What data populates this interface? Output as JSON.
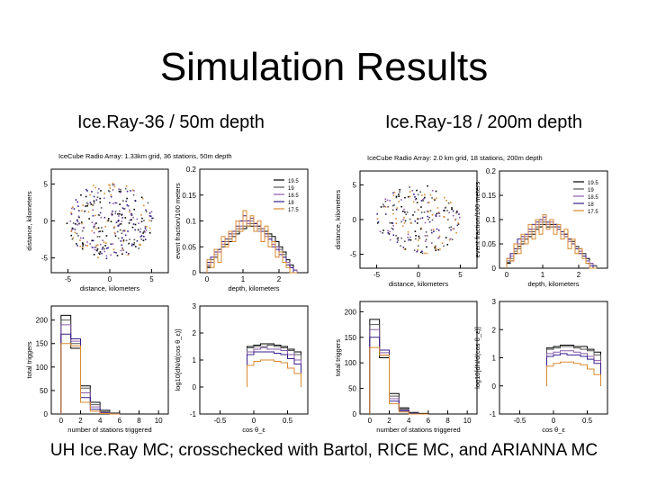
{
  "slide": {
    "title": "Simulation Results",
    "left_heading": "Ice.Ray-36 / 50m depth",
    "right_heading": "Ice.Ray-18 / 200m depth",
    "footer": "UH Ice.Ray MC; crosschecked with Bartol, RICE MC, and ARIANNA MC"
  },
  "chart_data": [
    {
      "panel": "left-top-left",
      "type": "scatter",
      "title": "IceCube Radio Array: 1.33km grid, 36 stations, 50m depth",
      "xlabel": "distance, kilometers",
      "ylabel": "distance, kilometers",
      "xlim": [
        -7,
        7
      ],
      "ylim": [
        -7,
        7
      ],
      "xticks": [
        -5,
        0,
        5
      ],
      "yticks": [
        -5,
        0,
        5
      ],
      "description_points": {
        "radius_km": 5.2,
        "count": 320,
        "seed": 7
      }
    },
    {
      "panel": "left-top-right",
      "type": "line",
      "xlabel": "depth, kilometers",
      "ylabel": "event fraction/100 meters",
      "xlim": [
        -0.2,
        2.8
      ],
      "ylim": [
        0,
        0.2
      ],
      "xticks": [
        0,
        1,
        2
      ],
      "yticks": [
        0,
        0.05,
        0.1,
        0.15,
        0.2
      ],
      "ytick_labels": [
        "0",
        "0.05",
        "0.1",
        "0.15",
        "0.2"
      ],
      "legend": [
        "19.5",
        "19",
        "18.5",
        "18",
        "17.5"
      ],
      "legend_colors": [
        "#000000",
        "#555555",
        "#8a5ca8",
        "#3a1f8c",
        "#d98a30"
      ],
      "x": [
        0,
        0.1,
        0.2,
        0.3,
        0.4,
        0.5,
        0.6,
        0.7,
        0.8,
        0.9,
        1.0,
        1.1,
        1.2,
        1.3,
        1.4,
        1.5,
        1.6,
        1.7,
        1.8,
        1.9,
        2.0,
        2.1,
        2.2,
        2.3,
        2.4
      ],
      "series": [
        {
          "name": "19.5",
          "values": [
            0.01,
            0.02,
            0.03,
            0.04,
            0.05,
            0.055,
            0.06,
            0.07,
            0.075,
            0.08,
            0.085,
            0.09,
            0.09,
            0.095,
            0.09,
            0.085,
            0.08,
            0.075,
            0.07,
            0.06,
            0.05,
            0.04,
            0.025,
            0.015,
            0.005
          ]
        },
        {
          "name": "19",
          "values": [
            0.012,
            0.025,
            0.03,
            0.045,
            0.05,
            0.06,
            0.065,
            0.07,
            0.08,
            0.085,
            0.09,
            0.1,
            0.095,
            0.09,
            0.085,
            0.08,
            0.075,
            0.07,
            0.06,
            0.05,
            0.045,
            0.035,
            0.02,
            0.01,
            0.005
          ]
        },
        {
          "name": "18.5",
          "values": [
            0.015,
            0.02,
            0.035,
            0.04,
            0.055,
            0.06,
            0.07,
            0.075,
            0.085,
            0.09,
            0.1,
            0.095,
            0.1,
            0.09,
            0.08,
            0.085,
            0.07,
            0.065,
            0.055,
            0.05,
            0.04,
            0.03,
            0.02,
            0.01,
            0.005
          ]
        },
        {
          "name": "18",
          "values": [
            0.02,
            0.03,
            0.04,
            0.045,
            0.06,
            0.065,
            0.075,
            0.08,
            0.09,
            0.1,
            0.11,
            0.1,
            0.105,
            0.095,
            0.09,
            0.08,
            0.075,
            0.065,
            0.05,
            0.045,
            0.035,
            0.03,
            0.015,
            0.01,
            0.0
          ]
        },
        {
          "name": "17.5",
          "values": [
            0.025,
            0.01,
            0.045,
            0.02,
            0.07,
            0.05,
            0.08,
            0.06,
            0.1,
            0.08,
            0.12,
            0.09,
            0.11,
            0.08,
            0.1,
            0.06,
            0.09,
            0.05,
            0.06,
            0.03,
            0.04,
            0.02,
            0.01,
            0.0,
            0.0
          ]
        }
      ]
    },
    {
      "panel": "left-bottom-left",
      "type": "bar",
      "xlabel": "number of stations triggered",
      "ylabel": "total triggers",
      "xlim": [
        -1,
        11
      ],
      "ylim": [
        0,
        230
      ],
      "xticks": [
        0,
        2,
        4,
        6,
        8,
        10
      ],
      "yticks": [
        0,
        50,
        100,
        150,
        200
      ],
      "x": [
        0,
        1,
        2,
        3,
        4,
        5
      ],
      "series": [
        {
          "name": "19.5",
          "values": [
            210,
            140,
            60,
            25,
            8,
            2
          ]
        },
        {
          "name": "19",
          "values": [
            200,
            150,
            55,
            20,
            5,
            1
          ]
        },
        {
          "name": "18.5",
          "values": [
            190,
            155,
            45,
            15,
            3,
            0
          ]
        },
        {
          "name": "18",
          "values": [
            170,
            160,
            35,
            10,
            2,
            0
          ]
        },
        {
          "name": "17.5",
          "values": [
            150,
            145,
            25,
            6,
            1,
            0
          ]
        }
      ]
    },
    {
      "panel": "left-bottom-right",
      "type": "line",
      "xlabel": "cos θ_ε",
      "ylabel": "log10[dN/d(cos θ_ε)]",
      "xlim": [
        -0.8,
        0.8
      ],
      "ylim": [
        -1,
        3
      ],
      "xticks": [
        -0.5,
        0,
        0.5
      ],
      "yticks": [
        -1,
        0,
        1,
        2,
        3
      ],
      "x": [
        -0.1,
        0.0,
        0.1,
        0.2,
        0.3,
        0.4,
        0.5,
        0.6
      ],
      "series": [
        {
          "name": "19.5",
          "values": [
            1.5,
            1.55,
            1.6,
            1.6,
            1.55,
            1.5,
            1.4,
            1.3
          ]
        },
        {
          "name": "19",
          "values": [
            1.45,
            1.5,
            1.5,
            1.55,
            1.5,
            1.45,
            1.35,
            1.2
          ]
        },
        {
          "name": "18.5",
          "values": [
            1.3,
            1.4,
            1.45,
            1.4,
            1.4,
            1.35,
            1.2,
            1.0
          ]
        },
        {
          "name": "18",
          "values": [
            1.2,
            1.3,
            1.3,
            1.3,
            1.25,
            1.2,
            1.05,
            0.85
          ]
        },
        {
          "name": "17.5",
          "values": [
            0.8,
            0.95,
            1.0,
            1.0,
            0.95,
            0.9,
            0.7,
            0.5
          ]
        }
      ]
    },
    {
      "panel": "right-top-left",
      "type": "scatter",
      "title": "IceCube Radio Array: 2.0 km grid, 18 stations, 200m depth",
      "xlabel": "distance, kilometers",
      "ylabel": "distance, kilometers",
      "xlim": [
        -7,
        7
      ],
      "ylim": [
        -7,
        7
      ],
      "xticks": [
        -5,
        0,
        5
      ],
      "yticks": [
        -5,
        0,
        5
      ],
      "description_points": {
        "radius_km": 5.0,
        "count": 230,
        "seed": 19
      }
    },
    {
      "panel": "right-top-right",
      "type": "line",
      "xlabel": "depth, kilometers",
      "ylabel": "event fraction/100 meters",
      "xlim": [
        -0.2,
        2.8
      ],
      "ylim": [
        0,
        0.2
      ],
      "xticks": [
        0,
        1,
        2
      ],
      "yticks": [
        0,
        0.05,
        0.1,
        0.15,
        0.2
      ],
      "ytick_labels": [
        "0",
        "0.05",
        "0.1",
        "0.15",
        "0.2"
      ],
      "legend": [
        "19.5",
        "19",
        "18.5",
        "18",
        "17.5"
      ],
      "legend_colors": [
        "#000000",
        "#555555",
        "#8a5ca8",
        "#3a1f8c",
        "#d98a30"
      ],
      "x": [
        0,
        0.1,
        0.2,
        0.3,
        0.4,
        0.5,
        0.6,
        0.7,
        0.8,
        0.9,
        1.0,
        1.1,
        1.2,
        1.3,
        1.4,
        1.5,
        1.6,
        1.7,
        1.8,
        1.9,
        2.0,
        2.1,
        2.2,
        2.3,
        2.4
      ],
      "series": [
        {
          "name": "19.5",
          "values": [
            0.01,
            0.015,
            0.03,
            0.045,
            0.05,
            0.06,
            0.065,
            0.07,
            0.08,
            0.085,
            0.09,
            0.085,
            0.09,
            0.085,
            0.08,
            0.075,
            0.07,
            0.06,
            0.055,
            0.045,
            0.04,
            0.03,
            0.02,
            0.01,
            0.005
          ]
        },
        {
          "name": "19",
          "values": [
            0.012,
            0.02,
            0.035,
            0.04,
            0.055,
            0.06,
            0.07,
            0.075,
            0.085,
            0.09,
            0.095,
            0.09,
            0.085,
            0.09,
            0.08,
            0.075,
            0.065,
            0.06,
            0.05,
            0.045,
            0.035,
            0.03,
            0.015,
            0.01,
            0.005
          ]
        },
        {
          "name": "18.5",
          "values": [
            0.015,
            0.025,
            0.04,
            0.05,
            0.06,
            0.065,
            0.075,
            0.08,
            0.09,
            0.095,
            0.1,
            0.09,
            0.095,
            0.085,
            0.08,
            0.07,
            0.065,
            0.055,
            0.05,
            0.04,
            0.035,
            0.025,
            0.015,
            0.01,
            0.0
          ]
        },
        {
          "name": "18",
          "values": [
            0.02,
            0.03,
            0.04,
            0.06,
            0.065,
            0.07,
            0.08,
            0.09,
            0.095,
            0.1,
            0.105,
            0.095,
            0.1,
            0.09,
            0.085,
            0.075,
            0.07,
            0.06,
            0.05,
            0.04,
            0.03,
            0.025,
            0.01,
            0.005,
            0.0
          ]
        },
        {
          "name": "17.5",
          "values": [
            0.02,
            0.015,
            0.05,
            0.03,
            0.07,
            0.05,
            0.09,
            0.06,
            0.1,
            0.07,
            0.11,
            0.08,
            0.1,
            0.07,
            0.09,
            0.06,
            0.08,
            0.04,
            0.06,
            0.03,
            0.04,
            0.02,
            0.01,
            0.0,
            0.0
          ]
        }
      ]
    },
    {
      "panel": "right-bottom-left",
      "type": "bar",
      "xlabel": "number of stations triggered",
      "ylabel": "total triggers",
      "xlim": [
        -1,
        11
      ],
      "ylim": [
        0,
        220
      ],
      "xticks": [
        0,
        2,
        4,
        6,
        8,
        10
      ],
      "yticks": [
        0,
        50,
        100,
        150,
        200
      ],
      "x": [
        0,
        1,
        2,
        3,
        4,
        5
      ],
      "series": [
        {
          "name": "19.5",
          "values": [
            185,
            110,
            40,
            12,
            3,
            1
          ]
        },
        {
          "name": "19",
          "values": [
            175,
            115,
            35,
            10,
            2,
            0
          ]
        },
        {
          "name": "18.5",
          "values": [
            165,
            120,
            30,
            8,
            1,
            0
          ]
        },
        {
          "name": "18",
          "values": [
            150,
            125,
            25,
            6,
            1,
            0
          ]
        },
        {
          "name": "17.5",
          "values": [
            130,
            115,
            20,
            4,
            0,
            0
          ]
        }
      ]
    },
    {
      "panel": "right-bottom-right",
      "type": "line",
      "xlabel": "cos θ_ε",
      "ylabel": "log10[dN/d(cos θ_ε)]",
      "xlim": [
        -0.8,
        0.8
      ],
      "ylim": [
        -1,
        3
      ],
      "xticks": [
        -0.5,
        0,
        0.5
      ],
      "yticks": [
        -1,
        0,
        1,
        2,
        3
      ],
      "x": [
        -0.1,
        0.0,
        0.1,
        0.2,
        0.3,
        0.4,
        0.5,
        0.6
      ],
      "series": [
        {
          "name": "19.5",
          "values": [
            1.35,
            1.4,
            1.45,
            1.45,
            1.4,
            1.4,
            1.3,
            1.2
          ]
        },
        {
          "name": "19",
          "values": [
            1.3,
            1.35,
            1.4,
            1.4,
            1.35,
            1.3,
            1.25,
            1.1
          ]
        },
        {
          "name": "18.5",
          "values": [
            1.15,
            1.2,
            1.25,
            1.25,
            1.2,
            1.15,
            1.05,
            0.9
          ]
        },
        {
          "name": "18",
          "values": [
            1.05,
            1.1,
            1.15,
            1.1,
            1.1,
            1.05,
            0.95,
            0.8
          ]
        },
        {
          "name": "17.5",
          "values": [
            0.7,
            0.8,
            0.85,
            0.85,
            0.8,
            0.75,
            0.6,
            0.4
          ]
        }
      ]
    }
  ]
}
